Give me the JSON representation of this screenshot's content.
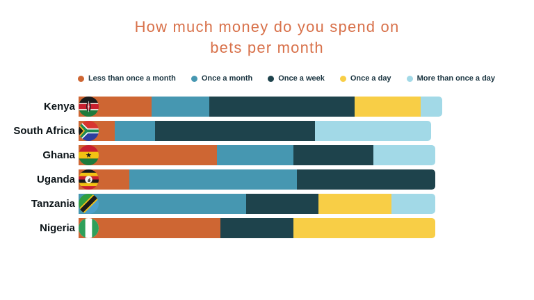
{
  "chart_data": {
    "type": "bar",
    "variant": "horizontal-stacked",
    "title": "How much money do you spend on bets per month",
    "title_lines": [
      "How much money do you spend on",
      "bets per month"
    ],
    "title_color": "#D8714A",
    "legend_position": "top",
    "axis_range": [
      0,
      100
    ],
    "grid": false,
    "series": [
      {
        "name": "Less than once a month",
        "key": "less-than-once-a-month",
        "color": "#CE6633"
      },
      {
        "name": "Once a month",
        "key": "once-a-month",
        "color": "#4697B1"
      },
      {
        "name": "Once a week",
        "key": "once-a-week",
        "color": "#1E434C"
      },
      {
        "name": "Once a day",
        "key": "once-a-day",
        "color": "#F8CE46"
      },
      {
        "name": "More than once a day",
        "key": "more-than-once-a-day",
        "color": "#A2D9E7"
      }
    ],
    "categories": [
      "Kenya",
      "South Africa",
      "Ghana",
      "Uganda",
      "Tanzania",
      "Nigeria"
    ],
    "rows": [
      {
        "country": "Kenya",
        "flag": "kenya-flag-icon",
        "values": [
          20,
          16,
          40,
          18,
          6
        ]
      },
      {
        "country": "South Africa",
        "flag": "south-africa-flag-icon",
        "values": [
          10,
          11,
          44,
          0,
          32
        ]
      },
      {
        "country": "Ghana",
        "flag": "ghana-flag-icon",
        "values": [
          38,
          21,
          22,
          0,
          17
        ]
      },
      {
        "country": "Uganda",
        "flag": "uganda-flag-icon",
        "values": [
          14,
          46,
          38,
          0,
          0
        ]
      },
      {
        "country": "Tanzania",
        "flag": "tanzania-flag-icon",
        "values": [
          0,
          46,
          20,
          20,
          12
        ]
      },
      {
        "country": "Nigeria",
        "flag": "nigeria-flag-icon",
        "values": [
          39,
          0,
          20,
          39,
          0
        ]
      }
    ],
    "colors": {
      "background": "#FFFFFF",
      "title": "#D8714A",
      "legend_text": "#1A3440",
      "country_label_text": "#0C1418"
    }
  }
}
